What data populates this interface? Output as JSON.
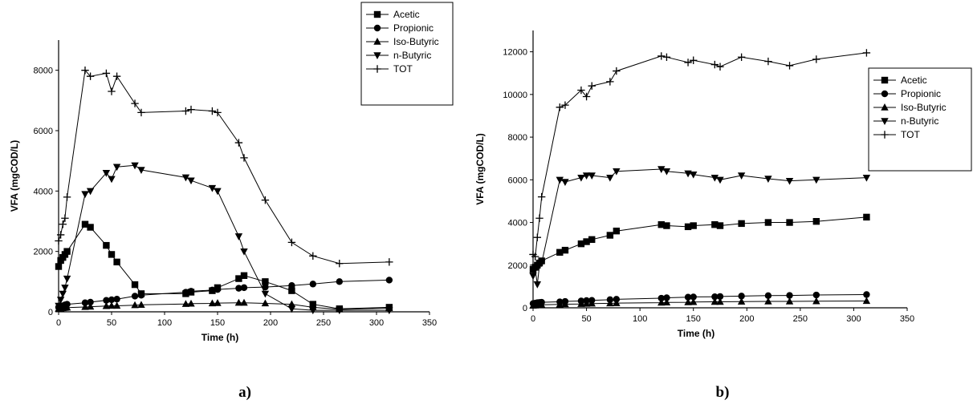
{
  "chart_data": [
    {
      "type": "line",
      "panel_label": "a)",
      "xlabel": "Time (h)",
      "ylabel": "VFA (mgCOD/L)",
      "xlim": [
        0,
        350
      ],
      "ylim": [
        0,
        9000
      ],
      "xticks": [
        0,
        50,
        100,
        150,
        200,
        250,
        300,
        350
      ],
      "yticks": [
        0,
        2000,
        4000,
        6000,
        8000
      ],
      "legend_position": "top-right",
      "series": [
        {
          "name": "Acetic",
          "marker": "square",
          "x": [
            0,
            2,
            4,
            6,
            8,
            25,
            30,
            45,
            50,
            55,
            72,
            78,
            120,
            125,
            145,
            150,
            170,
            175,
            195,
            220,
            240,
            265,
            312
          ],
          "y": [
            1500,
            1700,
            1800,
            1900,
            2000,
            2900,
            2800,
            2200,
            1900,
            1650,
            900,
            600,
            600,
            650,
            700,
            800,
            1100,
            1200,
            1000,
            700,
            250,
            100,
            150
          ]
        },
        {
          "name": "Propionic",
          "marker": "circle",
          "x": [
            0,
            2,
            4,
            6,
            8,
            25,
            30,
            45,
            50,
            55,
            72,
            78,
            120,
            125,
            145,
            150,
            170,
            175,
            195,
            220,
            240,
            265,
            312
          ],
          "y": [
            150,
            180,
            200,
            230,
            250,
            300,
            320,
            380,
            400,
            420,
            520,
            550,
            650,
            680,
            720,
            740,
            780,
            800,
            820,
            870,
            920,
            1000,
            1050
          ]
        },
        {
          "name": "Iso-Butyric",
          "marker": "triangle-up",
          "x": [
            0,
            2,
            4,
            6,
            8,
            25,
            30,
            45,
            50,
            55,
            72,
            78,
            120,
            125,
            145,
            150,
            170,
            175,
            195,
            220,
            240,
            265,
            312
          ],
          "y": [
            100,
            110,
            120,
            130,
            140,
            160,
            170,
            190,
            200,
            200,
            220,
            230,
            260,
            270,
            280,
            290,
            300,
            300,
            280,
            250,
            150,
            80,
            120
          ]
        },
        {
          "name": "n-Butyric",
          "marker": "triangle-down",
          "x": [
            0,
            2,
            4,
            6,
            8,
            25,
            30,
            45,
            50,
            55,
            72,
            78,
            120,
            125,
            145,
            150,
            170,
            175,
            195,
            220,
            240,
            265,
            312
          ],
          "y": [
            200,
            400,
            600,
            800,
            1100,
            3900,
            4000,
            4600,
            4400,
            4800,
            4850,
            4700,
            4450,
            4350,
            4100,
            4000,
            2500,
            2000,
            600,
            100,
            50,
            50,
            50
          ]
        },
        {
          "name": "TOT",
          "marker": "plus",
          "x": [
            0,
            2,
            4,
            6,
            8,
            25,
            30,
            45,
            50,
            55,
            72,
            78,
            120,
            125,
            145,
            150,
            170,
            175,
            195,
            220,
            240,
            265,
            312
          ],
          "y": [
            2350,
            2550,
            2900,
            3100,
            3800,
            8000,
            7800,
            7900,
            7300,
            7800,
            6900,
            6600,
            6650,
            6700,
            6650,
            6600,
            5600,
            5100,
            3700,
            2300,
            1850,
            1600,
            1650
          ]
        }
      ]
    },
    {
      "type": "line",
      "panel_label": "b)",
      "xlabel": "Time (h)",
      "ylabel": "VFA (mgCOD/L)",
      "xlim": [
        0,
        350
      ],
      "ylim": [
        0,
        13000
      ],
      "xticks": [
        0,
        50,
        100,
        150,
        200,
        250,
        300,
        350
      ],
      "yticks": [
        0,
        2000,
        4000,
        6000,
        8000,
        10000,
        12000
      ],
      "legend_position": "right",
      "series": [
        {
          "name": "Acetic",
          "marker": "square",
          "x": [
            0,
            2,
            4,
            6,
            8,
            25,
            30,
            45,
            50,
            55,
            72,
            78,
            120,
            125,
            145,
            150,
            170,
            175,
            195,
            220,
            240,
            265,
            312
          ],
          "y": [
            1800,
            1900,
            2000,
            2100,
            2200,
            2600,
            2700,
            3000,
            3100,
            3200,
            3400,
            3600,
            3900,
            3850,
            3800,
            3850,
            3900,
            3850,
            3950,
            4000,
            4000,
            4050,
            4250
          ]
        },
        {
          "name": "Propionic",
          "marker": "circle",
          "x": [
            0,
            2,
            4,
            6,
            8,
            25,
            30,
            45,
            50,
            55,
            72,
            78,
            120,
            125,
            145,
            150,
            170,
            175,
            195,
            220,
            240,
            265,
            312
          ],
          "y": [
            200,
            220,
            240,
            250,
            260,
            280,
            300,
            320,
            340,
            350,
            380,
            400,
            450,
            470,
            500,
            510,
            520,
            530,
            550,
            570,
            580,
            600,
            620
          ]
        },
        {
          "name": "Iso-Butyric",
          "marker": "triangle-up",
          "x": [
            0,
            2,
            4,
            6,
            8,
            25,
            30,
            45,
            50,
            55,
            72,
            78,
            120,
            125,
            145,
            150,
            170,
            175,
            195,
            220,
            240,
            265,
            312
          ],
          "y": [
            100,
            110,
            120,
            130,
            140,
            160,
            170,
            180,
            190,
            200,
            210,
            220,
            240,
            250,
            260,
            270,
            280,
            280,
            290,
            300,
            300,
            310,
            320
          ]
        },
        {
          "name": "n-Butyric",
          "marker": "triangle-down",
          "x": [
            0,
            2,
            4,
            6,
            8,
            25,
            30,
            45,
            50,
            55,
            72,
            78,
            120,
            125,
            145,
            150,
            170,
            175,
            195,
            220,
            240,
            265,
            312
          ],
          "y": [
            1500,
            1800,
            1100,
            2000,
            2100,
            6000,
            5900,
            6100,
            6200,
            6200,
            6100,
            6400,
            6500,
            6400,
            6300,
            6250,
            6100,
            6000,
            6200,
            6050,
            5950,
            6000,
            6100
          ]
        },
        {
          "name": "TOT",
          "marker": "plus",
          "x": [
            0,
            2,
            4,
            6,
            8,
            25,
            30,
            45,
            50,
            55,
            72,
            78,
            120,
            125,
            145,
            150,
            170,
            175,
            195,
            220,
            240,
            265,
            312
          ],
          "y": [
            2500,
            2400,
            3300,
            4200,
            5200,
            9400,
            9500,
            10200,
            9900,
            10400,
            10600,
            11100,
            11800,
            11750,
            11500,
            11600,
            11400,
            11300,
            11750,
            11550,
            11350,
            11650,
            11950
          ]
        }
      ]
    }
  ]
}
